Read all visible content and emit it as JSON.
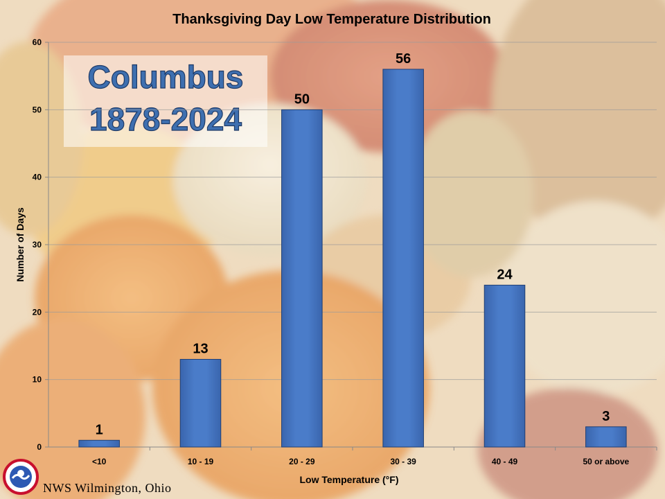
{
  "chart_data": {
    "type": "bar",
    "title": "Thanksgiving Day Low Temperature Distribution",
    "xlabel": "Low Temperature (°F)",
    "ylabel": "Number of Days",
    "categories": [
      "<10",
      "10 - 19",
      "20 - 29",
      "30 - 39",
      "40 - 49",
      "50 or above"
    ],
    "values": [
      1,
      13,
      50,
      56,
      24,
      3
    ],
    "ylim": [
      0,
      60
    ],
    "yticks": [
      0,
      10,
      20,
      30,
      40,
      50,
      60
    ],
    "grid": true,
    "bar_color": "#4a7cc9"
  },
  "annotation": {
    "line1": "Columbus",
    "line2": "1878-2024"
  },
  "footer": {
    "office": "NWS Wilmington, Ohio",
    "logo_icon": "nws-logo-icon"
  }
}
